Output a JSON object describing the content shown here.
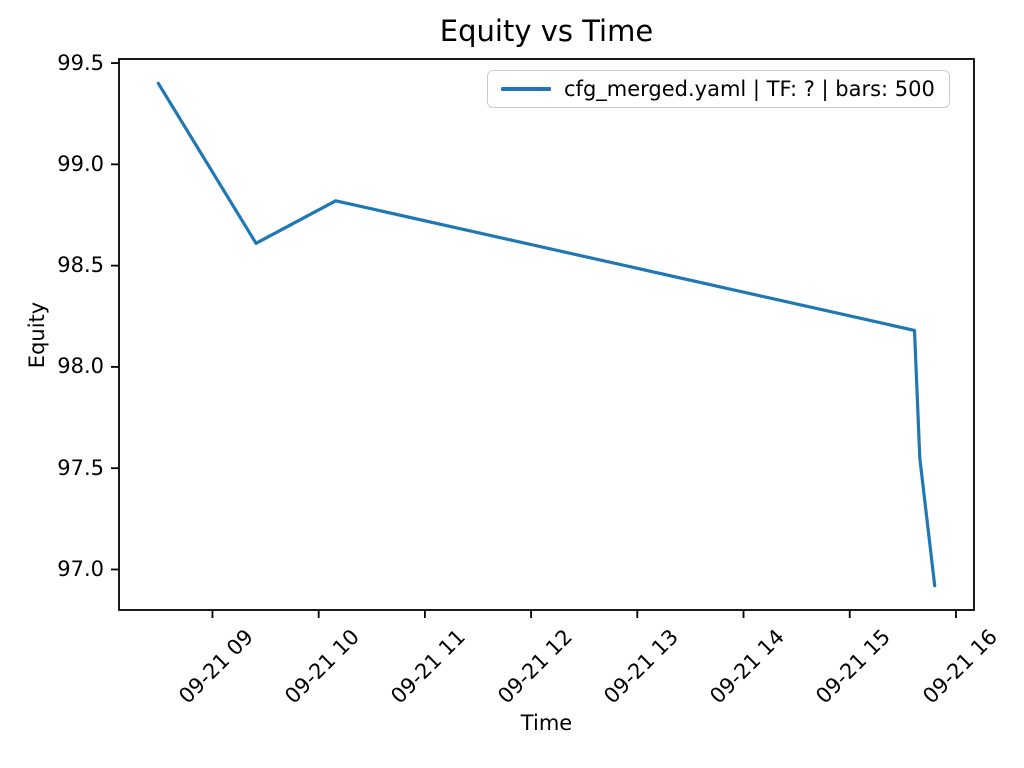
{
  "colors": {
    "line": "#1f77b4",
    "axis": "#000000",
    "text": "#000000",
    "legend_border": "#cccccc",
    "background": "#ffffff"
  },
  "chart_data": {
    "type": "line",
    "title": "Equity vs Time",
    "xlabel": "Time",
    "ylabel": "Equity",
    "grid": false,
    "legend_position": "upper right inside axes",
    "x_axis_kind": "datetime (month-day hour, Sep 21)",
    "xlim_hours": [
      8.12,
      16.17
    ],
    "ylim": [
      96.8,
      99.52
    ],
    "xticks": [
      {
        "hour": 9,
        "label": "09-21 09"
      },
      {
        "hour": 10,
        "label": "09-21 10"
      },
      {
        "hour": 11,
        "label": "09-21 11"
      },
      {
        "hour": 12,
        "label": "09-21 12"
      },
      {
        "hour": 13,
        "label": "09-21 13"
      },
      {
        "hour": 14,
        "label": "09-21 14"
      },
      {
        "hour": 15,
        "label": "09-21 15"
      },
      {
        "hour": 16,
        "label": "09-21 16"
      }
    ],
    "yticks": [
      {
        "value": 97.0,
        "label": "97.0"
      },
      {
        "value": 97.5,
        "label": "97.5"
      },
      {
        "value": 98.0,
        "label": "98.0"
      },
      {
        "value": 98.5,
        "label": "98.5"
      },
      {
        "value": 99.0,
        "label": "99.0"
      },
      {
        "value": 99.5,
        "label": "99.5"
      }
    ],
    "series": [
      {
        "name": "cfg_merged.yaml | TF: ? | bars: 500",
        "color": "#1f77b4",
        "points": [
          {
            "time": "09-21 08:29",
            "hour": 8.49,
            "equity": 99.4
          },
          {
            "time": "09-21 09:25",
            "hour": 9.41,
            "equity": 98.61
          },
          {
            "time": "09-21 10:10",
            "hour": 10.16,
            "equity": 98.82
          },
          {
            "time": "09-21 15:37",
            "hour": 15.61,
            "equity": 98.18
          },
          {
            "time": "09-21 15:40",
            "hour": 15.66,
            "equity": 97.55
          },
          {
            "time": "09-21 15:48",
            "hour": 15.8,
            "equity": 96.92
          }
        ]
      }
    ]
  }
}
